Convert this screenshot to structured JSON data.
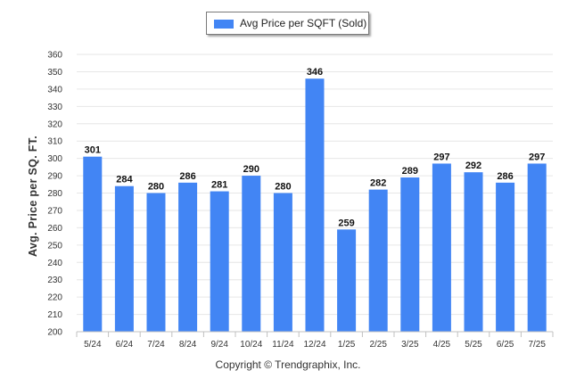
{
  "chart_data": {
    "type": "bar",
    "categories": [
      "5/24",
      "6/24",
      "7/24",
      "8/24",
      "9/24",
      "10/24",
      "11/24",
      "12/24",
      "1/25",
      "2/25",
      "3/25",
      "4/25",
      "5/25",
      "6/25",
      "7/25"
    ],
    "series": [
      {
        "name": "Avg Price per SQFT (Sold)",
        "values": [
          301,
          284,
          280,
          286,
          281,
          290,
          280,
          346,
          259,
          282,
          289,
          297,
          292,
          286,
          297
        ]
      }
    ],
    "ylabel": "Avg. Price per SQ. FT.",
    "xlabel": "",
    "ylim": [
      200,
      360
    ],
    "yticks": [
      200,
      210,
      220,
      230,
      240,
      250,
      260,
      270,
      280,
      290,
      300,
      310,
      320,
      330,
      340,
      350,
      360
    ],
    "grid": true,
    "legend_position": "top-center",
    "bar_color": "#4285f4"
  },
  "footer": {
    "copyright": "Copyright © Trendgraphix, Inc."
  }
}
